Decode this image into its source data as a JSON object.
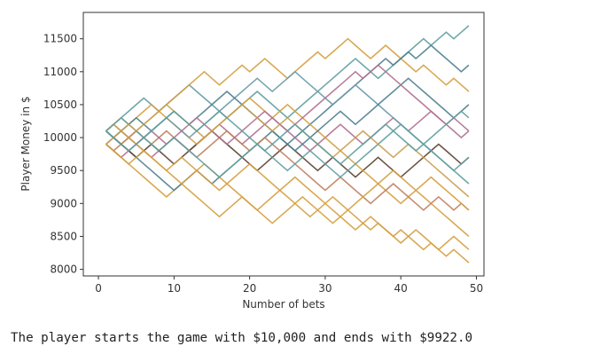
{
  "chart_data": {
    "type": "line",
    "title": "",
    "xlabel": "Number of bets",
    "ylabel": "Player Money in $",
    "xlim": [
      -2,
      51
    ],
    "ylim": [
      7900,
      11900
    ],
    "xticks": [
      0,
      10,
      20,
      30,
      40,
      50
    ],
    "yticks": [
      8000,
      8500,
      9000,
      9500,
      10000,
      10500,
      11000,
      11500
    ],
    "grid": false,
    "legend": "none",
    "series": [
      {
        "color": "#5f9ea0",
        "values": [
          10100,
          10200,
          10300,
          10400,
          10500,
          10600,
          10500,
          10400,
          10500,
          10600,
          10700,
          10800,
          10700,
          10600,
          10500,
          10400,
          10300,
          10400,
          10500,
          10600,
          10700,
          10600,
          10500,
          10400,
          10300,
          10400,
          10500,
          10600,
          10700,
          10800,
          10900,
          11000,
          11100,
          11200,
          11100,
          11000,
          10900,
          11000,
          11100,
          11200,
          11300,
          11400,
          11500,
          11400,
          11500,
          11600,
          11500,
          11600,
          11700
        ]
      },
      {
        "color": "#d4a040",
        "values": [
          9900,
          9800,
          9700,
          9600,
          9500,
          9400,
          9300,
          9200,
          9100,
          9200,
          9300,
          9200,
          9100,
          9000,
          8900,
          8800,
          8900,
          9000,
          9100,
          9000,
          8900,
          8800,
          8700,
          8800,
          8900,
          9000,
          9100,
          9000,
          8900,
          8800,
          8700,
          8800,
          8900,
          8800,
          8700,
          8600,
          8700,
          8600,
          8500,
          8600,
          8500,
          8400,
          8300,
          8400,
          8300,
          8400,
          8500,
          8400,
          8300
        ]
      },
      {
        "color": "#d4a040",
        "values": [
          10100,
          10000,
          9900,
          10000,
          10100,
          10200,
          10300,
          10400,
          10500,
          10600,
          10700,
          10800,
          10900,
          11000,
          10900,
          10800,
          10900,
          11000,
          11100,
          11000,
          11100,
          11200,
          11100,
          11000,
          10900,
          11000,
          11100,
          11200,
          11300,
          11200,
          11300,
          11400,
          11500,
          11400,
          11300,
          11200,
          11300,
          11400,
          11300,
          11200,
          11100,
          11000,
          11100,
          11000,
          10900,
          10800,
          10900,
          10800,
          10700
        ]
      },
      {
        "color": "#4f7f8f",
        "values": [
          10100,
          10000,
          9900,
          9800,
          9700,
          9600,
          9500,
          9400,
          9300,
          9200,
          9300,
          9400,
          9500,
          9400,
          9300,
          9400,
          9500,
          9600,
          9700,
          9800,
          9900,
          10000,
          10100,
          10000,
          9900,
          10000,
          10100,
          10200,
          10300,
          10400,
          10500,
          10600,
          10700,
          10800,
          10900,
          11000,
          11100,
          11200,
          11100,
          11200,
          11300,
          11200,
          11300,
          11400,
          11300,
          11200,
          11100,
          11000,
          11100
        ]
      },
      {
        "color": "#b07090",
        "values": [
          9900,
          10000,
          10100,
          10000,
          9900,
          9800,
          9700,
          9800,
          9900,
          10000,
          9900,
          9800,
          9900,
          10000,
          10100,
          10200,
          10100,
          10000,
          9900,
          10000,
          10100,
          10200,
          10300,
          10200,
          10100,
          10000,
          9900,
          9800,
          9900,
          10000,
          10100,
          10200,
          10100,
          10000,
          9900,
          10000,
          10100,
          10200,
          10300,
          10200,
          10100,
          10200,
          10300,
          10400,
          10300,
          10200,
          10300,
          10200,
          10100
        ]
      },
      {
        "color": "#5a4030",
        "values": [
          10100,
          10000,
          9900,
          9800,
          9700,
          9800,
          9900,
          9800,
          9700,
          9600,
          9700,
          9800,
          9900,
          10000,
          10100,
          10000,
          9900,
          9800,
          9700,
          9600,
          9500,
          9600,
          9700,
          9800,
          9900,
          9800,
          9700,
          9600,
          9500,
          9600,
          9700,
          9600,
          9500,
          9400,
          9500,
          9600,
          9700,
          9600,
          9500,
          9400,
          9500,
          9600,
          9700,
          9800,
          9900,
          9800,
          9700,
          9600,
          9700
        ]
      },
      {
        "color": "#d4a040",
        "values": [
          10100,
          10200,
          10300,
          10200,
          10300,
          10400,
          10500,
          10400,
          10300,
          10200,
          10100,
          10000,
          9900,
          10000,
          10100,
          10200,
          10300,
          10400,
          10500,
          10600,
          10500,
          10400,
          10300,
          10400,
          10500,
          10400,
          10300,
          10200,
          10100,
          10000,
          9900,
          9800,
          9700,
          9600,
          9500,
          9400,
          9300,
          9200,
          9100,
          9000,
          9100,
          9200,
          9100,
          9000,
          8900,
          8800,
          8700,
          8600,
          8500
        ]
      },
      {
        "color": "#6a9aa8",
        "values": [
          10100,
          10200,
          10100,
          10000,
          9900,
          10000,
          10100,
          10200,
          10300,
          10200,
          10100,
          10000,
          10100,
          10200,
          10300,
          10400,
          10500,
          10600,
          10700,
          10800,
          10900,
          10800,
          10700,
          10800,
          10900,
          11000,
          10900,
          10800,
          10700,
          10600,
          10500,
          10600,
          10700,
          10800,
          10700,
          10600,
          10500,
          10400,
          10300,
          10200,
          10100,
          10000,
          9900,
          9800,
          9700,
          9600,
          9500,
          9600,
          9700
        ]
      },
      {
        "color": "#c08060",
        "values": [
          9900,
          9800,
          9900,
          10000,
          10100,
          10000,
          9900,
          10000,
          10100,
          10000,
          9900,
          9800,
          9700,
          9800,
          9900,
          10000,
          10100,
          10000,
          9900,
          9800,
          9900,
          10000,
          9900,
          9800,
          9700,
          9600,
          9500,
          9400,
          9300,
          9200,
          9300,
          9400,
          9300,
          9200,
          9100,
          9000,
          9100,
          9200,
          9300,
          9200,
          9100,
          9000,
          8900,
          9000,
          9100,
          9000,
          8900,
          9000,
          8900
        ]
      },
      {
        "color": "#4f7f8f",
        "values": [
          10100,
          10000,
          10100,
          10200,
          10300,
          10200,
          10100,
          10200,
          10300,
          10400,
          10300,
          10200,
          10300,
          10400,
          10500,
          10600,
          10700,
          10600,
          10500,
          10400,
          10300,
          10200,
          10100,
          10000,
          9900,
          9800,
          9900,
          10000,
          10100,
          10200,
          10300,
          10400,
          10300,
          10200,
          10300,
          10400,
          10500,
          10600,
          10700,
          10800,
          10900,
          10800,
          10700,
          10600,
          10500,
          10400,
          10300,
          10400,
          10500
        ]
      },
      {
        "color": "#d4a040",
        "values": [
          10100,
          10200,
          10100,
          10000,
          9900,
          9800,
          9700,
          9600,
          9500,
          9400,
          9300,
          9400,
          9500,
          9600,
          9500,
          9400,
          9300,
          9200,
          9100,
          9000,
          8900,
          9000,
          9100,
          9200,
          9300,
          9400,
          9300,
          9200,
          9100,
          9000,
          8900,
          8800,
          8700,
          8600,
          8700,
          8800,
          8700,
          8600,
          8500,
          8400,
          8500,
          8600,
          8500,
          8400,
          8300,
          8200,
          8300,
          8200,
          8100
        ]
      },
      {
        "color": "#b07090",
        "values": [
          9900,
          9800,
          9700,
          9800,
          9900,
          10000,
          10100,
          10000,
          9900,
          10000,
          10100,
          10200,
          10300,
          10200,
          10100,
          10000,
          9900,
          10000,
          10100,
          10200,
          10300,
          10400,
          10300,
          10200,
          10100,
          10200,
          10300,
          10400,
          10500,
          10600,
          10700,
          10800,
          10900,
          11000,
          10900,
          11000,
          11100,
          11000,
          10900,
          10800,
          10700,
          10600,
          10500,
          10400,
          10300,
          10200,
          10100,
          10000,
          10100
        ]
      },
      {
        "color": "#5f9ea0",
        "values": [
          10100,
          10200,
          10300,
          10200,
          10100,
          10000,
          9900,
          9800,
          9900,
          10000,
          9900,
          9800,
          9700,
          9600,
          9500,
          9400,
          9500,
          9600,
          9700,
          9800,
          9900,
          9800,
          9700,
          9600,
          9500,
          9600,
          9700,
          9800,
          9700,
          9600,
          9500,
          9400,
          9500,
          9600,
          9700,
          9800,
          9900,
          10000,
          10100,
          10200,
          10100,
          10000,
          9900,
          9800,
          9700,
          9600,
          9500,
          9400,
          9300
        ]
      },
      {
        "color": "#c8a050",
        "values": [
          9900,
          10000,
          10100,
          10200,
          10100,
          10200,
          10300,
          10400,
          10500,
          10400,
          10300,
          10200,
          10100,
          10000,
          10100,
          10200,
          10300,
          10400,
          10500,
          10400,
          10300,
          10200,
          10100,
          10200,
          10300,
          10200,
          10100,
          10000,
          9900,
          9800,
          9700,
          9800,
          9900,
          10000,
          10100,
          10000,
          9900,
          9800,
          9700,
          9800,
          9900,
          9800,
          9700,
          9600,
          9500,
          9400,
          9300,
          9200,
          9100
        ]
      },
      {
        "color": "#5f9ea0",
        "values": [
          10100,
          10000,
          9900,
          9800,
          9900,
          10000,
          10100,
          10200,
          10300,
          10400,
          10300,
          10200,
          10100,
          10200,
          10300,
          10400,
          10300,
          10200,
          10100,
          10000,
          9900,
          9800,
          9900,
          10000,
          10100,
          10200,
          10100,
          10000,
          9900,
          9800,
          9700,
          9600,
          9700,
          9800,
          9900,
          10000,
          10100,
          10200,
          10100,
          10000,
          9900,
          9800,
          9900,
          10000,
          10100,
          10200,
          10300,
          10400,
          10300
        ]
      },
      {
        "color": "#d4a040",
        "values": [
          9900,
          9800,
          9700,
          9600,
          9700,
          9800,
          9700,
          9600,
          9500,
          9600,
          9700,
          9600,
          9500,
          9400,
          9300,
          9200,
          9300,
          9400,
          9500,
          9600,
          9500,
          9400,
          9300,
          9200,
          9100,
          9000,
          8900,
          8800,
          8900,
          9000,
          9100,
          9000,
          8900,
          9000,
          9100,
          9200,
          9300,
          9400,
          9500,
          9400,
          9300,
          9200,
          9300,
          9400,
          9300,
          9200,
          9100,
          9000,
          8900
        ]
      }
    ]
  },
  "caption": "The player starts the game with $10,000 and ends with $9922.0"
}
